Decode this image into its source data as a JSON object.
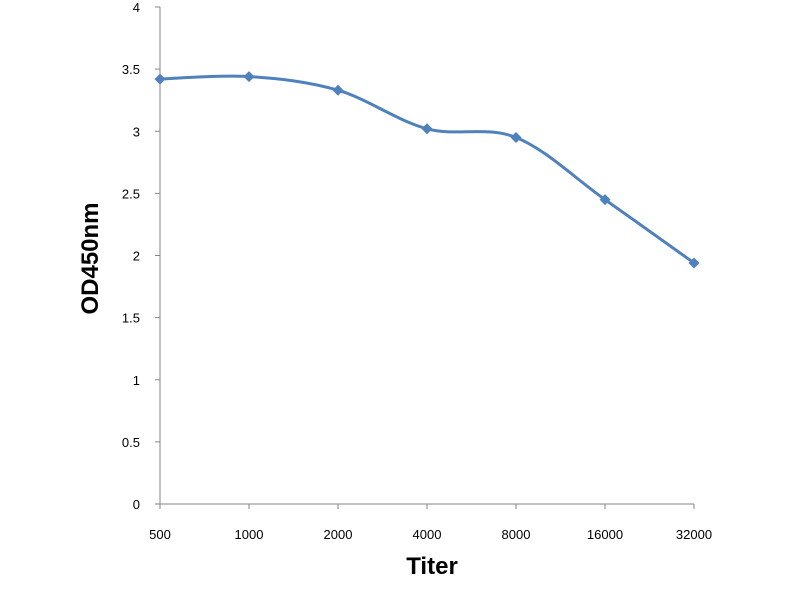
{
  "chart_data": {
    "type": "line",
    "title": "",
    "xlabel": "Titer",
    "ylabel": "OD450nm",
    "categories": [
      "500",
      "1000",
      "2000",
      "4000",
      "8000",
      "16000",
      "32000"
    ],
    "series": [
      {
        "values": [
          3.42,
          3.44,
          3.33,
          3.02,
          2.95,
          2.45,
          1.94
        ]
      }
    ],
    "ylim": [
      0,
      4
    ],
    "yticks": [
      "0",
      "0.5",
      "1",
      "1.5",
      "2",
      "2.5",
      "3",
      "3.5",
      "4"
    ],
    "grid": false,
    "legend": "none",
    "colors": {
      "line": "#4f81bd",
      "axis": "#868686"
    },
    "marker": "diamond"
  }
}
